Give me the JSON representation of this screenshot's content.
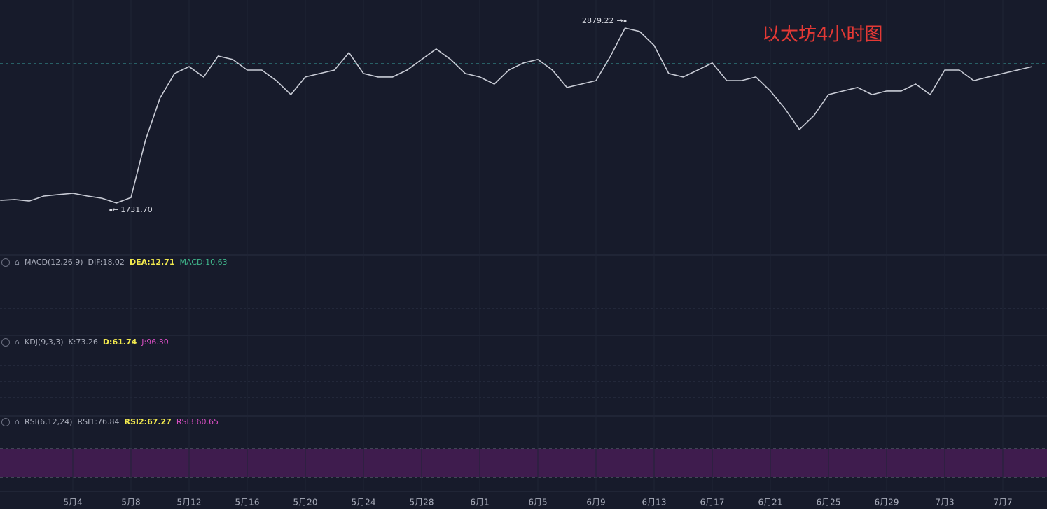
{
  "chart_data": {
    "type": "line",
    "title": "以太坊4小时图",
    "categories": [
      null,
      null,
      null,
      null,
      null,
      "5月4",
      null,
      null,
      null,
      "5月8",
      null,
      null,
      null,
      "5月12",
      null,
      null,
      null,
      "5月16",
      null,
      null,
      null,
      "5月20",
      null,
      null,
      null,
      "5月24",
      null,
      null,
      null,
      "5月28",
      null,
      null,
      null,
      "6月1",
      null,
      null,
      null,
      "6月5",
      null,
      null,
      null,
      "6月9",
      null,
      null,
      null,
      "6月13",
      null,
      null,
      null,
      "6月17",
      null,
      null,
      null,
      "6月21",
      null,
      null,
      null,
      "6月25",
      null,
      null,
      null,
      "6月29",
      null,
      null,
      null,
      "7月3",
      null,
      null,
      null,
      "7月7",
      null,
      null
    ],
    "series": [
      {
        "color": "#c9ccd6",
        "values": [
          1791,
          1796,
          1787,
          1817,
          1826,
          1834,
          1817,
          1804,
          1775,
          1808,
          2157,
          2412,
          2561,
          2603,
          2540,
          2667,
          2646,
          2582,
          2582,
          2518,
          2433,
          2540,
          2561,
          2582,
          2688,
          2561,
          2540,
          2540,
          2582,
          2646,
          2710,
          2646,
          2561,
          2540,
          2497,
          2582,
          2625,
          2646,
          2582,
          2476,
          2497,
          2518,
          2667,
          2837,
          2816,
          2731,
          2561,
          2540,
          2582,
          2625,
          2518,
          2518,
          2540,
          2455,
          2348,
          2221,
          2306,
          2433,
          2455,
          2476,
          2433,
          2455,
          2455,
          2497,
          2433,
          2582,
          2582,
          2518,
          2540,
          2561,
          2582,
          2603
        ]
      }
    ],
    "ylim": [
      1477,
      3007
    ],
    "high_label": 2879.22,
    "low_label": {
      "value": 1731.7,
      "label": "1731.70"
    },
    "panels": [
      {
        "name": "MACD(12,26,9)",
        "readouts": [
          {
            "text": "DIF:18.02",
            "color": "#a9adbb"
          },
          {
            "text": "DEA:12.71",
            "color": "#f2e94e"
          },
          {
            "text": "MACD:10.63",
            "color": "#3fb68b"
          }
        ]
      },
      {
        "name": "KDJ(9,3,3)",
        "readouts": [
          {
            "text": "K:73.26",
            "color": "#a9adbb"
          },
          {
            "text": "D:61.74",
            "color": "#f2e94e"
          },
          {
            "text": "J:96.30",
            "color": "#d84ec2"
          }
        ]
      },
      {
        "name": "RSI(6,12,24)",
        "readouts": [
          {
            "text": "RSI1:76.84",
            "color": "#a9adbb"
          },
          {
            "text": "RSI2:67.27",
            "color": "#f2e94e"
          },
          {
            "text": "RSI3:60.65",
            "color": "#d84ec2"
          }
        ]
      }
    ]
  }
}
